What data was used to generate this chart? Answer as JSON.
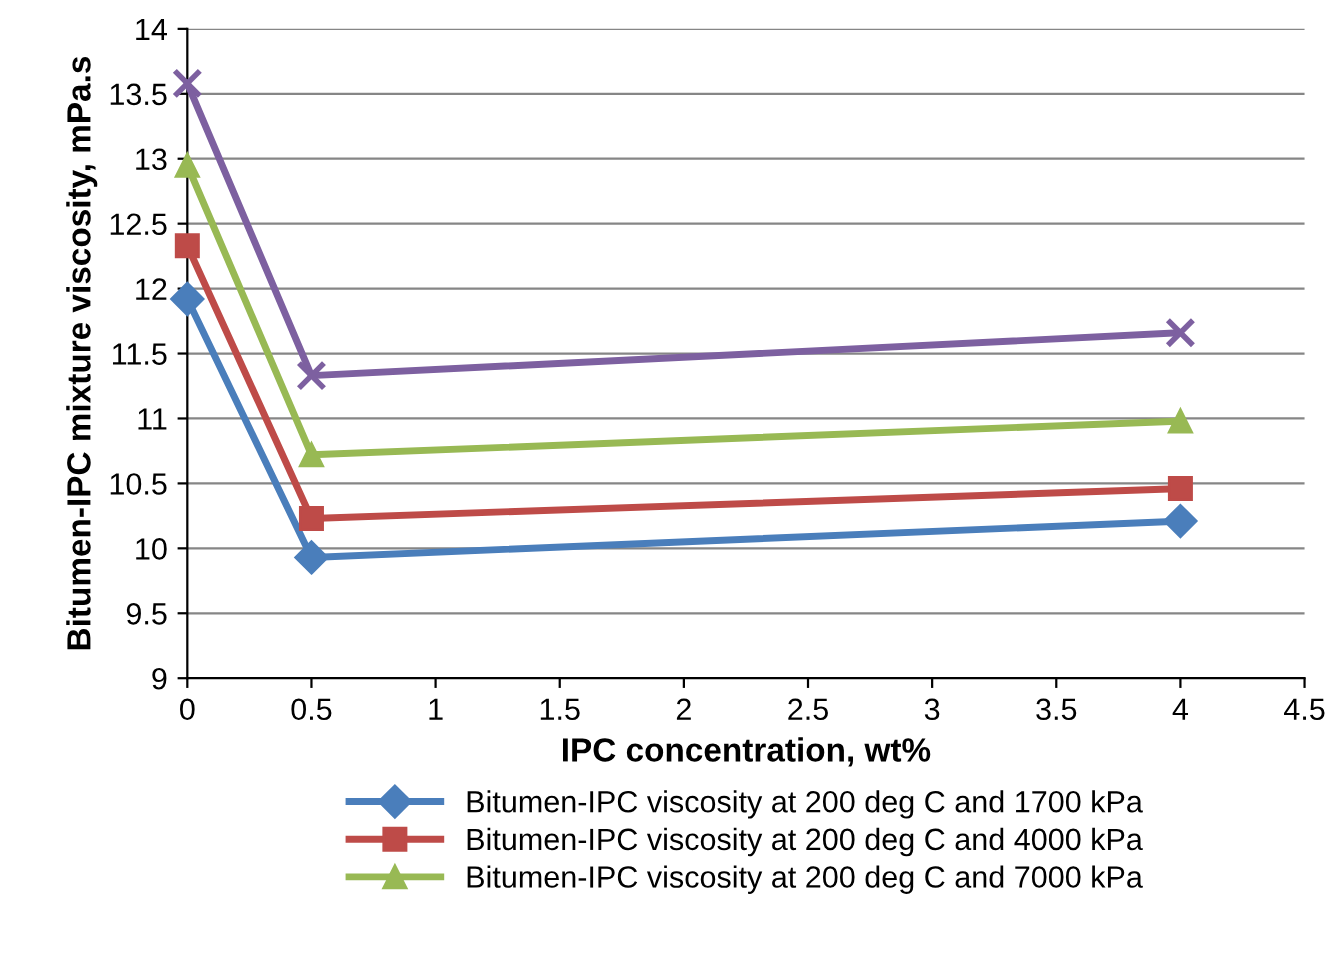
{
  "chart_data": {
    "type": "line",
    "xlabel": "IPC concentration, wt%",
    "ylabel": "Bitumen-IPC mixture viscosity, mPa.s",
    "x": [
      0,
      0.5,
      4
    ],
    "series": [
      {
        "name": "Bitumen-IPC viscosity at 200 deg C and 1700 kPa",
        "color": "#4a7ebb",
        "marker": "diamond",
        "values": [
          11.92,
          9.93,
          10.21
        ]
      },
      {
        "name": "Bitumen-IPC viscosity at 200 deg C and 4000 kPa",
        "color": "#be4b48",
        "marker": "square",
        "values": [
          12.33,
          10.23,
          10.46
        ]
      },
      {
        "name": "Bitumen-IPC viscosity at 200 deg C and 7000 kPa",
        "color": "#98b954",
        "marker": "triangle",
        "values": [
          12.95,
          10.72,
          10.98
        ]
      },
      {
        "color": "#7d60a0",
        "marker": "cross",
        "values": [
          13.58,
          11.33,
          11.66
        ]
      }
    ],
    "xlim": [
      0,
      4.5
    ],
    "xticks": [
      0,
      0.5,
      1,
      1.5,
      2,
      2.5,
      3,
      3.5,
      4,
      4.5
    ],
    "ylim": [
      9,
      14
    ],
    "yticks": [
      9,
      9.5,
      10,
      10.5,
      11,
      11.5,
      12,
      12.5,
      13,
      13.5,
      14
    ],
    "grid": "y",
    "legend": "bottom",
    "line_style": "solid"
  }
}
